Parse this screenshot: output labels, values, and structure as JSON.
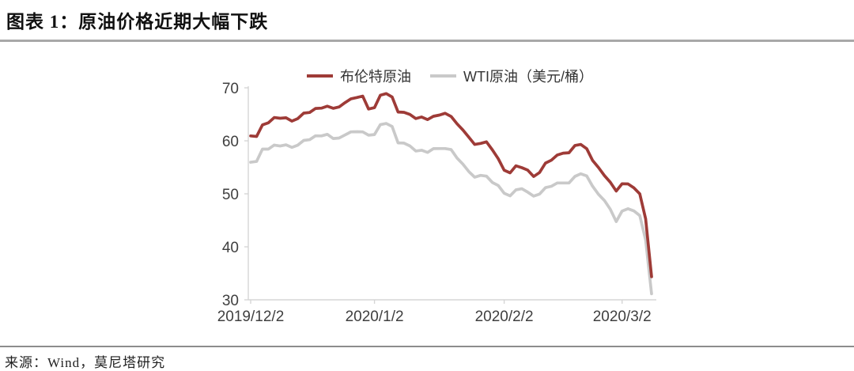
{
  "page": {
    "title": "图表 1：原油价格近期大幅下跌",
    "source": "来源：Wind，莫尼塔研究"
  },
  "chart_data": {
    "type": "line",
    "title": "原油价格近期大幅下跌",
    "xlabel": "",
    "ylabel": "美元/桶",
    "ylim": [
      30,
      70
    ],
    "y_ticks": [
      30,
      40,
      50,
      60,
      70
    ],
    "x_tick_labels": [
      "2019/12/2",
      "2020/1/2",
      "2020/2/2",
      "2020/3/2"
    ],
    "x_tick_indices": [
      0,
      21,
      43,
      63
    ],
    "grid": false,
    "legend_position": "top",
    "x": [
      "2019/12/2",
      "2019/12/3",
      "2019/12/4",
      "2019/12/5",
      "2019/12/6",
      "2019/12/9",
      "2019/12/10",
      "2019/12/11",
      "2019/12/12",
      "2019/12/13",
      "2019/12/16",
      "2019/12/17",
      "2019/12/18",
      "2019/12/19",
      "2019/12/20",
      "2019/12/23",
      "2019/12/24",
      "2019/12/26",
      "2019/12/27",
      "2019/12/30",
      "2019/12/31",
      "2020/1/2",
      "2020/1/3",
      "2020/1/6",
      "2020/1/7",
      "2020/1/8",
      "2020/1/9",
      "2020/1/10",
      "2020/1/13",
      "2020/1/14",
      "2020/1/15",
      "2020/1/16",
      "2020/1/17",
      "2020/1/20",
      "2020/1/21",
      "2020/1/22",
      "2020/1/23",
      "2020/1/24",
      "2020/1/27",
      "2020/1/28",
      "2020/1/29",
      "2020/1/30",
      "2020/1/31",
      "2020/2/3",
      "2020/2/4",
      "2020/2/5",
      "2020/2/6",
      "2020/2/7",
      "2020/2/10",
      "2020/2/11",
      "2020/2/12",
      "2020/2/13",
      "2020/2/14",
      "2020/2/17",
      "2020/2/18",
      "2020/2/19",
      "2020/2/20",
      "2020/2/21",
      "2020/2/24",
      "2020/2/25",
      "2020/2/26",
      "2020/2/27",
      "2020/2/28",
      "2020/3/2",
      "2020/3/3",
      "2020/3/4",
      "2020/3/5",
      "2020/3/6",
      "2020/3/9"
    ],
    "series": [
      {
        "name": "布伦特原油",
        "color": "#9e3b37",
        "values": [
          60.92,
          60.82,
          63.0,
          63.39,
          64.39,
          64.25,
          64.34,
          63.72,
          64.2,
          65.22,
          65.34,
          66.1,
          66.17,
          66.54,
          66.14,
          66.39,
          67.2,
          67.92,
          68.16,
          68.44,
          66.0,
          66.25,
          68.6,
          68.91,
          68.27,
          65.44,
          65.37,
          64.98,
          64.2,
          64.49,
          64.0,
          64.62,
          64.85,
          65.2,
          64.59,
          63.21,
          62.04,
          60.69,
          59.32,
          59.51,
          59.81,
          58.29,
          56.62,
          54.45,
          53.96,
          55.28,
          54.93,
          54.47,
          53.27,
          54.01,
          55.79,
          56.34,
          57.32,
          57.67,
          57.75,
          59.12,
          59.31,
          58.5,
          56.3,
          54.95,
          53.43,
          52.18,
          50.52,
          51.9,
          51.86,
          51.13,
          49.99,
          45.27,
          34.36
        ]
      },
      {
        "name": "WTI原油（美元/桶）",
        "color": "#c9c9c9",
        "values": [
          55.96,
          56.1,
          58.43,
          58.43,
          59.2,
          59.02,
          59.24,
          58.76,
          59.18,
          60.07,
          60.21,
          60.94,
          60.93,
          61.22,
          60.44,
          60.52,
          61.11,
          61.68,
          61.72,
          61.68,
          61.06,
          61.18,
          63.05,
          63.27,
          62.7,
          59.61,
          59.56,
          59.04,
          58.08,
          58.23,
          57.81,
          58.52,
          58.54,
          58.54,
          58.34,
          56.74,
          55.59,
          54.19,
          53.14,
          53.48,
          53.33,
          52.14,
          51.56,
          50.11,
          49.61,
          50.75,
          50.95,
          50.32,
          49.57,
          49.94,
          51.17,
          51.42,
          52.05,
          52.05,
          52.05,
          53.29,
          53.78,
          53.38,
          51.43,
          49.9,
          48.73,
          47.09,
          44.76,
          46.75,
          47.18,
          46.78,
          45.9,
          41.28,
          31.13
        ]
      }
    ]
  }
}
